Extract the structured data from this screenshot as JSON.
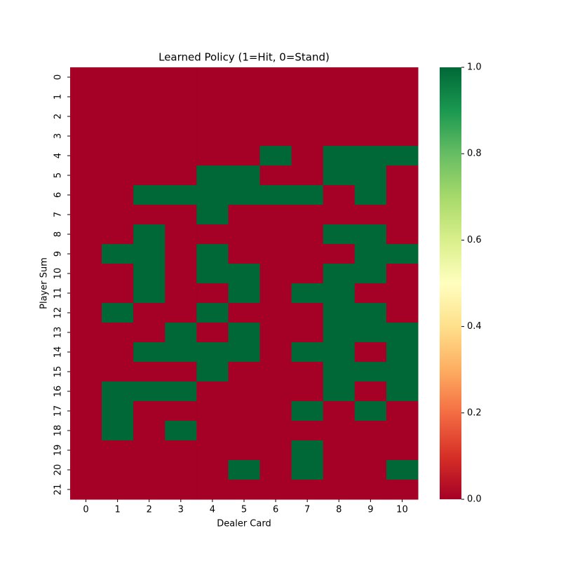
{
  "chart_data": {
    "type": "heatmap",
    "title": "Learned Policy (1=Hit, 0=Stand)",
    "x_label": "Dealer Card",
    "y_label": "Player Sum",
    "x": [
      0,
      1,
      2,
      3,
      4,
      5,
      6,
      7,
      8,
      9,
      10
    ],
    "y": [
      0,
      1,
      2,
      3,
      4,
      5,
      6,
      7,
      8,
      9,
      10,
      11,
      12,
      13,
      14,
      15,
      16,
      17,
      18,
      19,
      20,
      21
    ],
    "z": [
      [
        0,
        0,
        0,
        0,
        0,
        0,
        0,
        0,
        0,
        0,
        0
      ],
      [
        0,
        0,
        0,
        0,
        0,
        0,
        0,
        0,
        0,
        0,
        0
      ],
      [
        0,
        0,
        0,
        0,
        0,
        0,
        0,
        0,
        0,
        0,
        0
      ],
      [
        0,
        0,
        0,
        0,
        0,
        0,
        0,
        0,
        0,
        0,
        0
      ],
      [
        0,
        0,
        0,
        0,
        0,
        0,
        1,
        0,
        1,
        1,
        1
      ],
      [
        0,
        0,
        0,
        0,
        1,
        1,
        0,
        0,
        1,
        1,
        0
      ],
      [
        0,
        0,
        1,
        1,
        1,
        1,
        1,
        1,
        0,
        1,
        0
      ],
      [
        0,
        0,
        0,
        0,
        1,
        0,
        0,
        0,
        0,
        0,
        0
      ],
      [
        0,
        0,
        1,
        0,
        0,
        0,
        0,
        0,
        1,
        1,
        0
      ],
      [
        0,
        1,
        1,
        0,
        1,
        0,
        0,
        0,
        0,
        1,
        1
      ],
      [
        0,
        0,
        1,
        0,
        1,
        1,
        0,
        0,
        1,
        1,
        0
      ],
      [
        0,
        0,
        1,
        0,
        0,
        1,
        0,
        1,
        1,
        0,
        0
      ],
      [
        0,
        1,
        0,
        0,
        1,
        0,
        0,
        0,
        1,
        1,
        0
      ],
      [
        0,
        0,
        0,
        1,
        0,
        1,
        0,
        0,
        1,
        1,
        1
      ],
      [
        0,
        0,
        1,
        1,
        1,
        1,
        0,
        1,
        1,
        0,
        1
      ],
      [
        0,
        0,
        0,
        0,
        1,
        0,
        0,
        0,
        1,
        1,
        1
      ],
      [
        0,
        1,
        1,
        1,
        0,
        0,
        0,
        0,
        1,
        0,
        1
      ],
      [
        0,
        1,
        0,
        0,
        0,
        0,
        0,
        1,
        0,
        1,
        0
      ],
      [
        0,
        1,
        0,
        1,
        0,
        0,
        0,
        0,
        0,
        0,
        0
      ],
      [
        0,
        0,
        0,
        0,
        0,
        0,
        0,
        1,
        0,
        0,
        0
      ],
      [
        0,
        0,
        0,
        0,
        0,
        1,
        0,
        1,
        0,
        0,
        1
      ],
      [
        0,
        0,
        0,
        0,
        0,
        0,
        0,
        0,
        0,
        0,
        0
      ]
    ],
    "colors": [
      "#a50026",
      "#d73027",
      "#f46d43",
      "#fdae61",
      "#fee08b",
      "#ffffbf",
      "#d9ef8b",
      "#a6d96a",
      "#66bd63",
      "#1a9850",
      "#006837"
    ],
    "zlim": [
      0,
      1
    ],
    "zticks": [
      {
        "value": 0,
        "label": "0.0"
      },
      0.2,
      0.4,
      0.6,
      0.8,
      {
        "value": 1,
        "label": "1.0"
      }
    ]
  }
}
